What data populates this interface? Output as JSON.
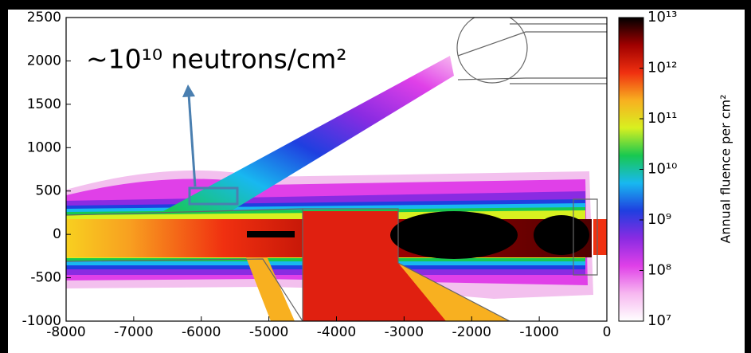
{
  "chart_data": {
    "type": "heatmap",
    "annotation": "~10¹⁰ neutrons/cm²",
    "colorbar_label": "Annual fluence per cm²",
    "xlim": [
      -8000,
      0
    ],
    "ylim": [
      -1000,
      2500
    ],
    "xticks": [
      -8000,
      -7000,
      -6000,
      -5000,
      -4000,
      -3000,
      -2000,
      -1000,
      0
    ],
    "yticks": [
      -1000,
      -500,
      0,
      500,
      1000,
      1500,
      2000,
      2500
    ],
    "clim": [
      10000000,
      10000000000000
    ],
    "log_scale": true,
    "cticks": [
      {
        "value": 10000000,
        "label": "10⁷"
      },
      {
        "value": 100000000,
        "label": "10⁸"
      },
      {
        "value": 1000000000,
        "label": "10⁹"
      },
      {
        "value": 10000000000,
        "label": "10¹⁰"
      },
      {
        "value": 100000000000,
        "label": "10¹¹"
      },
      {
        "value": 1000000000000,
        "label": "10¹²"
      },
      {
        "value": 10000000000000,
        "label": "10¹³"
      }
    ],
    "colormap": [
      "#ffffff",
      "#f7b8f0",
      "#e040e8",
      "#8a2be2",
      "#1f3fe0",
      "#18b8f0",
      "#18c850",
      "#d8f020",
      "#f8b020",
      "#f03010",
      "#a00000",
      "#000000"
    ]
  }
}
